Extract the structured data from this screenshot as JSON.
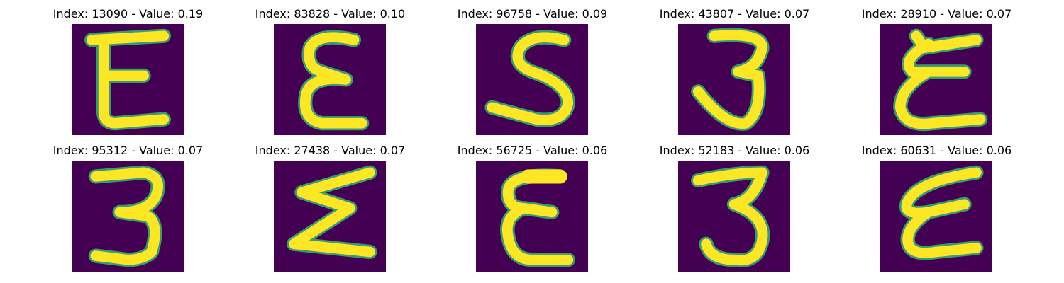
{
  "colors": {
    "background": "#440154",
    "stroke": "#fde725",
    "edge": "#35b779",
    "edge_dark": "#21918c"
  },
  "panels": [
    {
      "index": "13090",
      "value": "0.19",
      "title": "Index: 13090 - Value: 0.19",
      "glyph": "E"
    },
    {
      "index": "83828",
      "value": "0.10",
      "title": "Index: 83828 - Value: 0.10",
      "glyph": "epsilon"
    },
    {
      "index": "96758",
      "value": "0.09",
      "title": "Index: 96758 - Value: 0.09",
      "glyph": "S"
    },
    {
      "index": "43807",
      "value": "0.07",
      "title": "Index: 43807 - Value: 0.07",
      "glyph": "3"
    },
    {
      "index": "28910",
      "value": "0.07",
      "title": "Index: 28910 - Value: 0.07",
      "glyph": "curly-E"
    },
    {
      "index": "95312",
      "value": "0.07",
      "title": "Index: 95312 - Value: 0.07",
      "glyph": "3"
    },
    {
      "index": "27438",
      "value": "0.07",
      "title": "Index: 27438 - Value: 0.07",
      "glyph": "sigma"
    },
    {
      "index": "56725",
      "value": "0.06",
      "title": "Index: 56725 - Value: 0.06",
      "glyph": "epsilon"
    },
    {
      "index": "52183",
      "value": "0.06",
      "title": "Index: 52183 - Value: 0.06",
      "glyph": "3"
    },
    {
      "index": "60631",
      "value": "0.06",
      "title": "Index: 60631 - Value: 0.06",
      "glyph": "slanted-E"
    }
  ]
}
